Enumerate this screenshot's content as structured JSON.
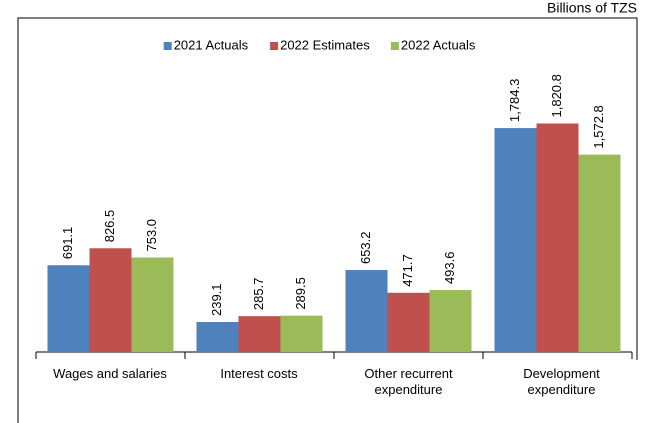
{
  "chart_data": {
    "type": "bar",
    "unit_label": "Billions of TZS",
    "categories": [
      "Wages and salaries",
      "Interest costs",
      "Other recurrent expenditure",
      "Development expenditure"
    ],
    "series": [
      {
        "name": "2021 Actuals",
        "color": "#4f81bd",
        "values": [
          691.1,
          239.1,
          653.2,
          1784.3
        ],
        "value_labels": [
          "691.1",
          "239.1",
          "653.2",
          "1,784.3"
        ]
      },
      {
        "name": "2022 Estimates",
        "color": "#c0504d",
        "values": [
          826.5,
          285.7,
          471.7,
          1820.8
        ],
        "value_labels": [
          "826.5",
          "285.7",
          "471.7",
          "1,820.8"
        ]
      },
      {
        "name": "2022 Actuals",
        "color": "#9bbb59",
        "values": [
          753.0,
          289.5,
          493.6,
          1572.8
        ],
        "value_labels": [
          "753.0",
          "289.5",
          "493.6",
          "1,572.8"
        ]
      }
    ],
    "ylim": [
      0,
      2000
    ],
    "legend": "top"
  }
}
